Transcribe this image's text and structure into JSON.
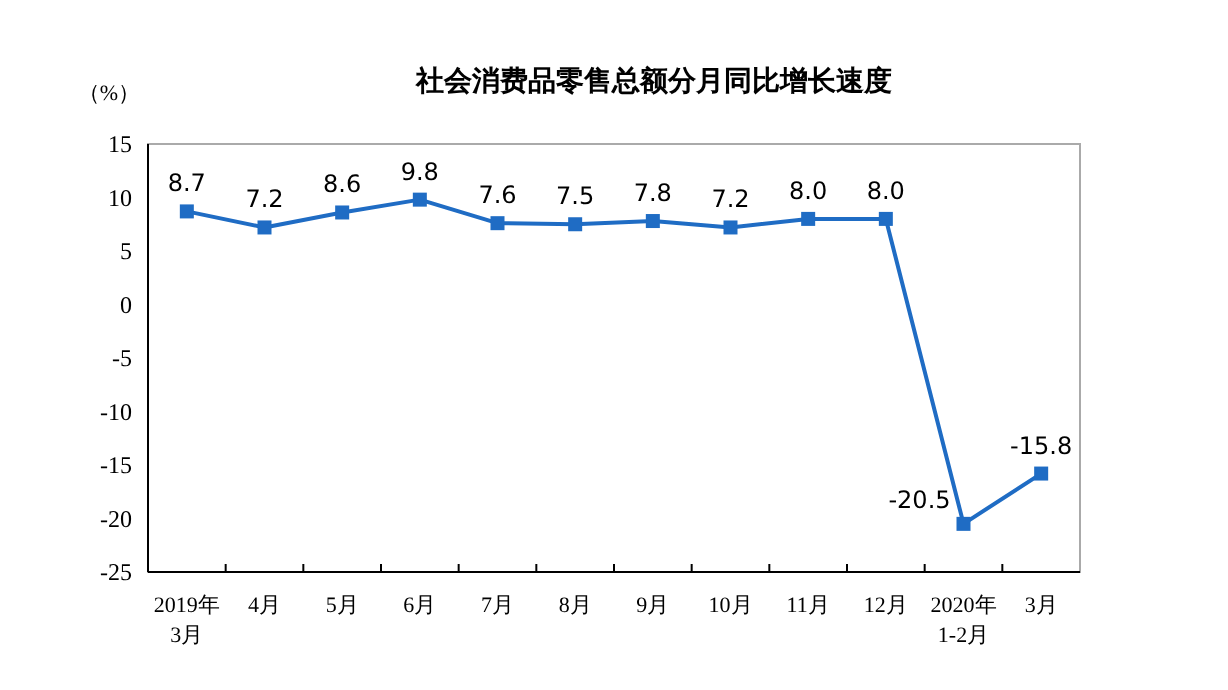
{
  "chart_data": {
    "type": "line",
    "title": "社会消费品零售总额分月同比增长速度",
    "ylabel": "（%）",
    "categories": [
      "2019年\n3月",
      "4月",
      "5月",
      "6月",
      "7月",
      "8月",
      "9月",
      "10月",
      "11月",
      "12月",
      "2020年\n1-2月",
      "3月"
    ],
    "series": [
      {
        "color": "#1f6cc4",
        "values": [
          8.7,
          7.2,
          8.6,
          9.8,
          7.6,
          7.5,
          7.8,
          7.2,
          8.0,
          8.0,
          -20.5,
          -15.8
        ]
      }
    ],
    "value_labels": [
      "8.7",
      "7.2",
      "8.6",
      "9.8",
      "7.6",
      "7.5",
      "7.8",
      "7.2",
      "8.0",
      "8.0",
      "-20.5",
      "-15.8"
    ],
    "ylim": [
      -25,
      15
    ],
    "yticks": [
      -25,
      -20,
      -15,
      -10,
      -5,
      0,
      5,
      10,
      15
    ],
    "grid": false,
    "marker": "square",
    "line_style": "solid"
  }
}
